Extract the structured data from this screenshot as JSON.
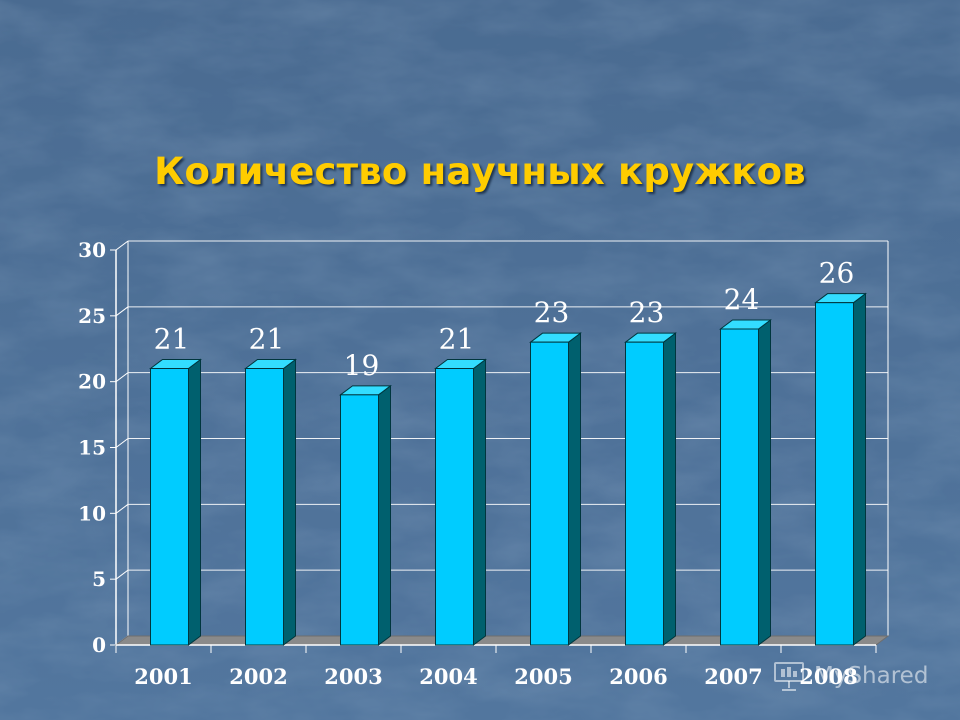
{
  "title": "Количество научных кружков",
  "colors": {
    "background": "#4d6f96",
    "title": "#ffcc00",
    "bar_front": "#00ccff",
    "bar_side": "#00606e",
    "bar_top": "#33ddff",
    "axis_text": "#ffffff",
    "grid": "#ffffff",
    "floor": "#8a8a8a"
  },
  "watermark": {
    "text": "MyShared",
    "icon": "presentation-screen-icon"
  },
  "chart_data": {
    "type": "bar",
    "style": "3d-column",
    "categories": [
      "2001",
      "2002",
      "2003",
      "2004",
      "2005",
      "2006",
      "2007",
      "2008"
    ],
    "values": [
      21,
      21,
      19,
      21,
      23,
      23,
      24,
      26
    ],
    "data_labels": [
      "21",
      "21",
      "19",
      "21",
      "23",
      "23",
      "24",
      "26"
    ],
    "ylim": [
      0,
      30
    ],
    "yticks": [
      0,
      5,
      10,
      15,
      20,
      25,
      30
    ],
    "grid": true,
    "legend": "none",
    "xlabel": "",
    "ylabel": ""
  }
}
